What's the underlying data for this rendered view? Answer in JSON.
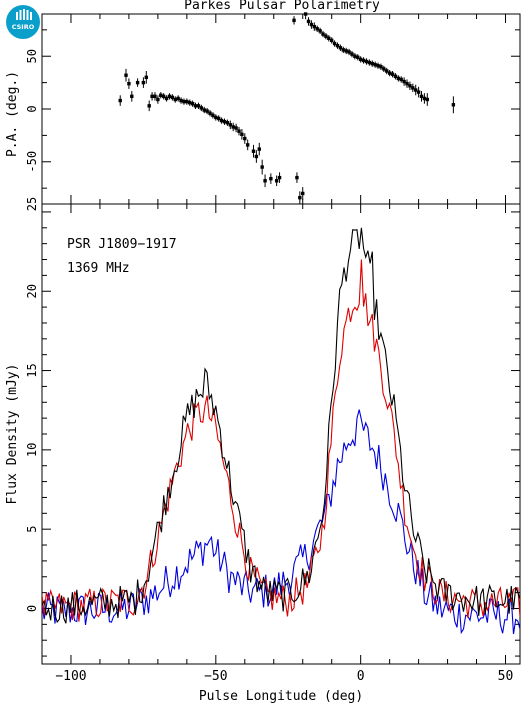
{
  "logo": {
    "text": "CSIRO",
    "color": "#0a9ecb"
  },
  "chart_data": [
    {
      "panel": "position-angle",
      "type": "scatter",
      "title": "Parkes Pulsar Polarimetry",
      "ylabel": "P.A. (deg.)",
      "xlim": [
        -110,
        55
      ],
      "ylim": [
        -90,
        90
      ],
      "yticks": [
        -50,
        0,
        50
      ],
      "point_color": "#000000",
      "points": [
        [
          -83,
          8,
          5
        ],
        [
          -81,
          32,
          6
        ],
        [
          -80,
          24,
          5
        ],
        [
          -79,
          12,
          5
        ],
        [
          -77,
          25,
          4
        ],
        [
          -75,
          25,
          5
        ],
        [
          -74,
          30,
          6
        ],
        [
          -73,
          3,
          5
        ],
        [
          -72,
          12,
          4
        ],
        [
          -71,
          12,
          4
        ],
        [
          -70,
          9,
          4
        ],
        [
          -69,
          13,
          3
        ],
        [
          -68,
          12,
          3
        ],
        [
          -67,
          10,
          3
        ],
        [
          -66,
          12,
          3
        ],
        [
          -65,
          11,
          3
        ],
        [
          -64,
          9,
          3
        ],
        [
          -63,
          10,
          3
        ],
        [
          -62,
          8,
          3
        ],
        [
          -61,
          7,
          3
        ],
        [
          -60,
          7,
          3
        ],
        [
          -59,
          6,
          3
        ],
        [
          -58,
          5,
          3
        ],
        [
          -57,
          3,
          3
        ],
        [
          -56,
          3,
          3
        ],
        [
          -55,
          1,
          3
        ],
        [
          -54,
          -1,
          3
        ],
        [
          -53,
          -2,
          3
        ],
        [
          -52,
          -4,
          3
        ],
        [
          -51,
          -6,
          3
        ],
        [
          -50,
          -8,
          3
        ],
        [
          -49,
          -9,
          3
        ],
        [
          -48,
          -11,
          3
        ],
        [
          -47,
          -12,
          3
        ],
        [
          -46,
          -13,
          3
        ],
        [
          -45,
          -15,
          4
        ],
        [
          -44,
          -17,
          4
        ],
        [
          -43,
          -18,
          4
        ],
        [
          -42,
          -21,
          4
        ],
        [
          -41,
          -24,
          5
        ],
        [
          -40,
          -28,
          5
        ],
        [
          -39,
          -34,
          5
        ],
        [
          -37,
          -40,
          6
        ],
        [
          -36,
          -45,
          6
        ],
        [
          -35,
          -38,
          6
        ],
        [
          -34,
          -55,
          7
        ],
        [
          -33,
          -68,
          6
        ],
        [
          -31,
          -66,
          5
        ],
        [
          -29,
          -68,
          5
        ],
        [
          -28,
          -65,
          5
        ],
        [
          -22,
          -65,
          5
        ],
        [
          -21,
          -84,
          6
        ],
        [
          -20,
          -80,
          6
        ],
        [
          -23,
          84,
          4
        ],
        [
          -19,
          90,
          5
        ],
        [
          -18,
          83,
          4
        ],
        [
          -17,
          80,
          4
        ],
        [
          -16,
          78,
          4
        ],
        [
          -15,
          76,
          3
        ],
        [
          -14,
          74,
          3
        ],
        [
          -13,
          71,
          3
        ],
        [
          -12,
          69,
          3
        ],
        [
          -11,
          67,
          3
        ],
        [
          -10,
          65,
          3
        ],
        [
          -9,
          62,
          3
        ],
        [
          -8,
          60,
          3
        ],
        [
          -7,
          58,
          3
        ],
        [
          -6,
          56,
          3
        ],
        [
          -5,
          55,
          3
        ],
        [
          -4,
          54,
          3
        ],
        [
          -3,
          52,
          3
        ],
        [
          -2,
          50,
          3
        ],
        [
          -1,
          49,
          3
        ],
        [
          0,
          47,
          3
        ],
        [
          1,
          46,
          3
        ],
        [
          2,
          45,
          3
        ],
        [
          3,
          44,
          3
        ],
        [
          4,
          43,
          3
        ],
        [
          5,
          42,
          3
        ],
        [
          6,
          41,
          3
        ],
        [
          7,
          40,
          3
        ],
        [
          8,
          38,
          3
        ],
        [
          9,
          36,
          3
        ],
        [
          10,
          34,
          3
        ],
        [
          11,
          33,
          3
        ],
        [
          12,
          31,
          3
        ],
        [
          13,
          29,
          3
        ],
        [
          14,
          28,
          3
        ],
        [
          15,
          26,
          4
        ],
        [
          16,
          24,
          4
        ],
        [
          17,
          22,
          4
        ],
        [
          18,
          20,
          4
        ],
        [
          19,
          18,
          5
        ],
        [
          20,
          16,
          5
        ],
        [
          21,
          12,
          5
        ],
        [
          22,
          10,
          5
        ],
        [
          23,
          9,
          6
        ],
        [
          32,
          4,
          8
        ]
      ]
    },
    {
      "panel": "flux-density",
      "type": "line",
      "pulsar_label": "PSR J1809−1917",
      "frequency_label": "1369 MHz",
      "xlabel": "Pulse Longitude (deg)",
      "ylabel": "Flux Density (mJy)",
      "xlim": [
        -110,
        55
      ],
      "ylim": [
        -3.5,
        25.5
      ],
      "xticks": [
        -100,
        -50,
        0,
        50
      ],
      "yticks": [
        0,
        5,
        10,
        15,
        20
      ],
      "top_axis_tick_label": "25",
      "series": [
        {
          "key": "total",
          "color": "#000000",
          "knots": [
            [
              -110,
              0
            ],
            [
              -78,
              0.5
            ],
            [
              -74,
              2
            ],
            [
              -70,
              5
            ],
            [
              -65,
              8.5
            ],
            [
              -60,
              12
            ],
            [
              -56,
              13.5
            ],
            [
              -53,
              14
            ],
            [
              -50,
              12.5
            ],
            [
              -46,
              9
            ],
            [
              -42,
              5.5
            ],
            [
              -38,
              2.5
            ],
            [
              -33,
              1
            ],
            [
              -25,
              0.8
            ],
            [
              -18,
              2
            ],
            [
              -13,
              6
            ],
            [
              -10,
              13
            ],
            [
              -7,
              20
            ],
            [
              -4,
              22.5
            ],
            [
              -2,
              23
            ],
            [
              0,
              23.5
            ],
            [
              2,
              22
            ],
            [
              5,
              19
            ],
            [
              9,
              15
            ],
            [
              12,
              12
            ],
            [
              15,
              8
            ],
            [
              18,
              5
            ],
            [
              22,
              2.5
            ],
            [
              28,
              1
            ],
            [
              40,
              0.5
            ],
            [
              55,
              0.5
            ]
          ],
          "noise": 0.9,
          "spikes": [
            [
              -54,
              15.1
            ],
            [
              0,
              24
            ],
            [
              4,
              22.5
            ]
          ]
        },
        {
          "key": "linear",
          "color": "#dd0000",
          "knots": [
            [
              -110,
              0
            ],
            [
              -78,
              0.5
            ],
            [
              -74,
              1.8
            ],
            [
              -70,
              4.5
            ],
            [
              -65,
              8
            ],
            [
              -60,
              11
            ],
            [
              -56,
              12.3
            ],
            [
              -53,
              12.5
            ],
            [
              -50,
              11.3
            ],
            [
              -46,
              8
            ],
            [
              -42,
              4.8
            ],
            [
              -38,
              2.2
            ],
            [
              -33,
              0.8
            ],
            [
              -25,
              0.5
            ],
            [
              -18,
              1.5
            ],
            [
              -13,
              5
            ],
            [
              -10,
              11
            ],
            [
              -7,
              16.5
            ],
            [
              -4,
              18.8
            ],
            [
              -2,
              19.5
            ],
            [
              0,
              20
            ],
            [
              2,
              19
            ],
            [
              5,
              17
            ],
            [
              9,
              13.5
            ],
            [
              12,
              10.5
            ],
            [
              15,
              6.5
            ],
            [
              18,
              4
            ],
            [
              22,
              2
            ],
            [
              28,
              0.8
            ],
            [
              40,
              0.3
            ],
            [
              55,
              0.3
            ]
          ],
          "noise": 0.9,
          "spikes": [
            [
              0,
              22
            ]
          ]
        },
        {
          "key": "circular",
          "color": "#0000dd",
          "knots": [
            [
              -110,
              -0.2
            ],
            [
              -80,
              0
            ],
            [
              -72,
              0.8
            ],
            [
              -65,
              2
            ],
            [
              -58,
              3.2
            ],
            [
              -52,
              4.3
            ],
            [
              -50,
              3.5
            ],
            [
              -45,
              2
            ],
            [
              -40,
              1.2
            ],
            [
              -35,
              1
            ],
            [
              -30,
              1.2
            ],
            [
              -25,
              1.8
            ],
            [
              -18,
              3.5
            ],
            [
              -12,
              6
            ],
            [
              -8,
              9
            ],
            [
              -4,
              10.8
            ],
            [
              0,
              11.5
            ],
            [
              3,
              10.5
            ],
            [
              6,
              9.5
            ],
            [
              9,
              8
            ],
            [
              13,
              6
            ],
            [
              17,
              3.5
            ],
            [
              22,
              1
            ],
            [
              27,
              0
            ],
            [
              35,
              -0.4
            ],
            [
              55,
              -0.5
            ]
          ],
          "noise": 1.0,
          "spikes": [
            [
              -1,
              12
            ]
          ]
        }
      ]
    }
  ]
}
